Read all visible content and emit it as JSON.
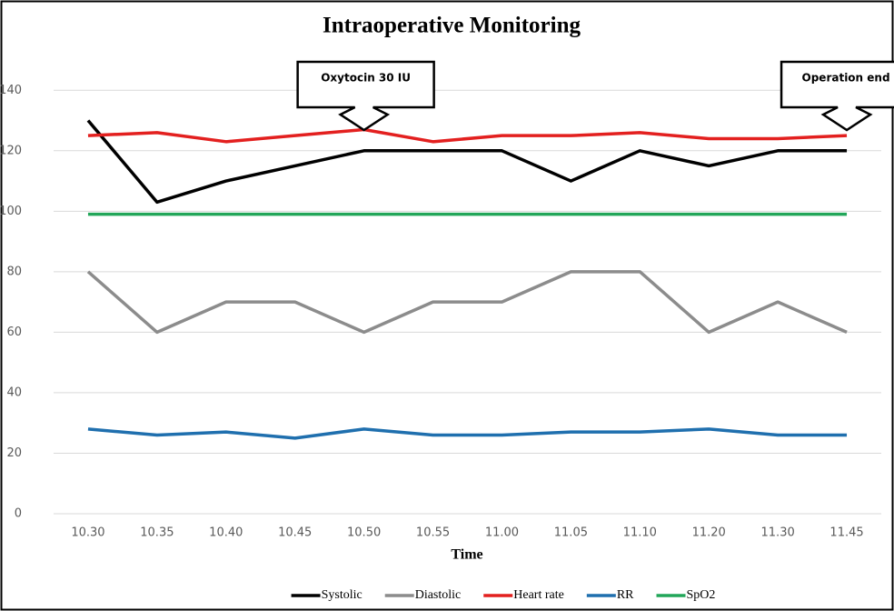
{
  "chart_data": {
    "type": "line",
    "title": "Intraoperative Monitoring",
    "x_label": "Time",
    "categories": [
      "10.30",
      "10.35",
      "10.40",
      "10.45",
      "10.50",
      "10.55",
      "11.00",
      "11.05",
      "11.10",
      "11.20",
      "11.30",
      "11.45"
    ],
    "series": [
      {
        "name": "Systolic",
        "color": "#000000",
        "values": [
          130,
          103,
          110,
          115,
          120,
          120,
          120,
          110,
          120,
          115,
          120,
          120
        ]
      },
      {
        "name": "Diastolic",
        "color": "#8c8c8c",
        "values": [
          80,
          60,
          70,
          70,
          60,
          70,
          70,
          80,
          80,
          60,
          70,
          60
        ]
      },
      {
        "name": "Heart rate",
        "color": "#e3201f",
        "values": [
          125,
          126,
          123,
          125,
          127,
          123,
          125,
          125,
          126,
          124,
          124,
          125
        ]
      },
      {
        "name": "RR",
        "color": "#1f6fae",
        "values": [
          28,
          26,
          27,
          25,
          28,
          26,
          26,
          27,
          27,
          28,
          26,
          26
        ]
      },
      {
        "name": "SpO2",
        "color": "#22a659",
        "values": [
          99,
          99,
          99,
          99,
          99,
          99,
          99,
          99,
          99,
          99,
          99,
          99
        ]
      }
    ],
    "annotations": [
      {
        "text": "Oxytocin 30 IU",
        "x": "10.50"
      },
      {
        "text": "Operation end",
        "x": "11.45"
      }
    ],
    "ylim": [
      0,
      150
    ],
    "yticks": [
      0,
      20,
      40,
      60,
      80,
      100,
      120,
      140
    ],
    "grid": true,
    "legend": "bottom"
  }
}
